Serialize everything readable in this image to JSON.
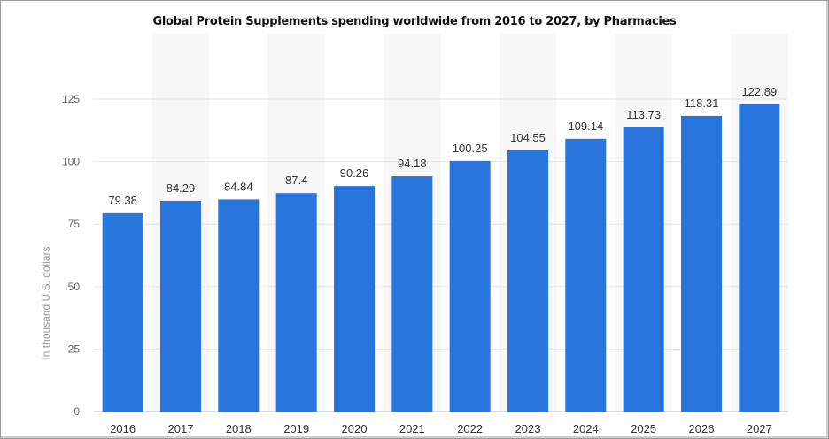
{
  "chart_data": {
    "type": "bar",
    "title": "Global Protein Supplements spending worldwide from 2016 to 2027, by Pharmacies",
    "xlabel": "",
    "ylabel": "In thousand U.S. dollars",
    "categories": [
      "2016",
      "2017",
      "2018",
      "2019",
      "2020",
      "2021",
      "2022",
      "2023",
      "2024",
      "2025",
      "2026",
      "2027"
    ],
    "values": [
      79.38,
      84.29,
      84.84,
      87.4,
      90.26,
      94.18,
      100.25,
      104.55,
      109.14,
      113.73,
      118.31,
      122.89
    ],
    "value_labels": [
      "79.38",
      "84.29",
      "84.84",
      "87.4",
      "90.26",
      "94.18",
      "100.25",
      "104.55",
      "109.14",
      "113.73",
      "118.31",
      "122.89"
    ],
    "yticks": [
      0,
      25,
      50,
      75,
      100,
      125
    ],
    "ylim": [
      0,
      125
    ],
    "grid": true,
    "bar_color": "#2876dd",
    "band_color": "#f7f7f7"
  }
}
